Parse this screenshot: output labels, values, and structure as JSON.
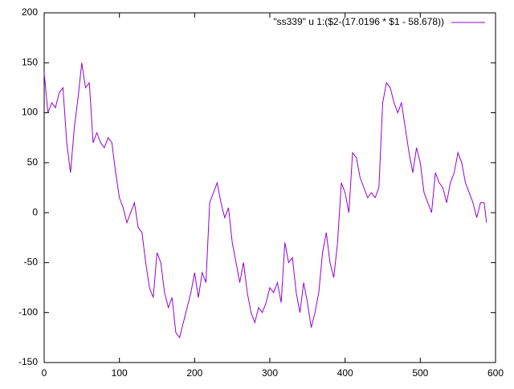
{
  "chart_data": {
    "type": "line",
    "x": [
      0,
      5,
      10,
      15,
      20,
      25,
      30,
      35,
      40,
      45,
      50,
      55,
      60,
      65,
      70,
      75,
      80,
      85,
      90,
      95,
      100,
      105,
      110,
      115,
      120,
      125,
      130,
      135,
      140,
      145,
      150,
      155,
      160,
      165,
      170,
      175,
      180,
      185,
      190,
      195,
      200,
      205,
      210,
      215,
      220,
      225,
      230,
      235,
      240,
      245,
      250,
      255,
      260,
      265,
      270,
      275,
      280,
      285,
      290,
      295,
      300,
      305,
      310,
      315,
      320,
      325,
      330,
      335,
      340,
      345,
      350,
      355,
      360,
      365,
      370,
      375,
      380,
      385,
      390,
      395,
      400,
      405,
      410,
      415,
      420,
      425,
      430,
      435,
      440,
      445,
      450,
      455,
      460,
      465,
      470,
      475,
      480,
      485,
      490,
      495,
      500,
      505,
      510,
      515,
      520,
      525,
      530,
      535,
      540,
      545,
      550,
      555,
      560,
      565,
      570,
      575,
      580,
      585,
      588
    ],
    "series": [
      {
        "name": "\"ss339\" u 1:($2-(17.0196 * $1 - 58.678))",
        "color": "#9400d3",
        "values": [
          140,
          100,
          110,
          105,
          120,
          125,
          70,
          40,
          85,
          115,
          150,
          125,
          130,
          70,
          80,
          70,
          65,
          75,
          70,
          40,
          15,
          5,
          -10,
          0,
          10,
          -15,
          -20,
          -50,
          -75,
          -85,
          -40,
          -50,
          -80,
          -95,
          -85,
          -120,
          -125,
          -110,
          -95,
          -80,
          -60,
          -85,
          -60,
          -70,
          10,
          20,
          30,
          10,
          -5,
          5,
          -30,
          -50,
          -70,
          -50,
          -80,
          -100,
          -110,
          -95,
          -100,
          -90,
          -75,
          -80,
          -70,
          -90,
          -30,
          -50,
          -45,
          -80,
          -100,
          -70,
          -90,
          -115,
          -100,
          -80,
          -40,
          -20,
          -50,
          -65,
          -30,
          30,
          20,
          0,
          60,
          55,
          35,
          25,
          15,
          20,
          15,
          25,
          110,
          130,
          125,
          110,
          100,
          110,
          85,
          60,
          40,
          65,
          50,
          20,
          10,
          0,
          40,
          30,
          25,
          10,
          30,
          40,
          60,
          50,
          30,
          20,
          10,
          -5,
          10,
          10,
          -10
        ]
      }
    ],
    "xlim": [
      0,
      600
    ],
    "ylim": [
      -150,
      200
    ],
    "xticks": [
      0,
      100,
      200,
      300,
      400,
      500,
      600
    ],
    "yticks": [
      -150,
      -100,
      -50,
      0,
      50,
      100,
      150,
      200
    ],
    "legend": "top-right"
  }
}
